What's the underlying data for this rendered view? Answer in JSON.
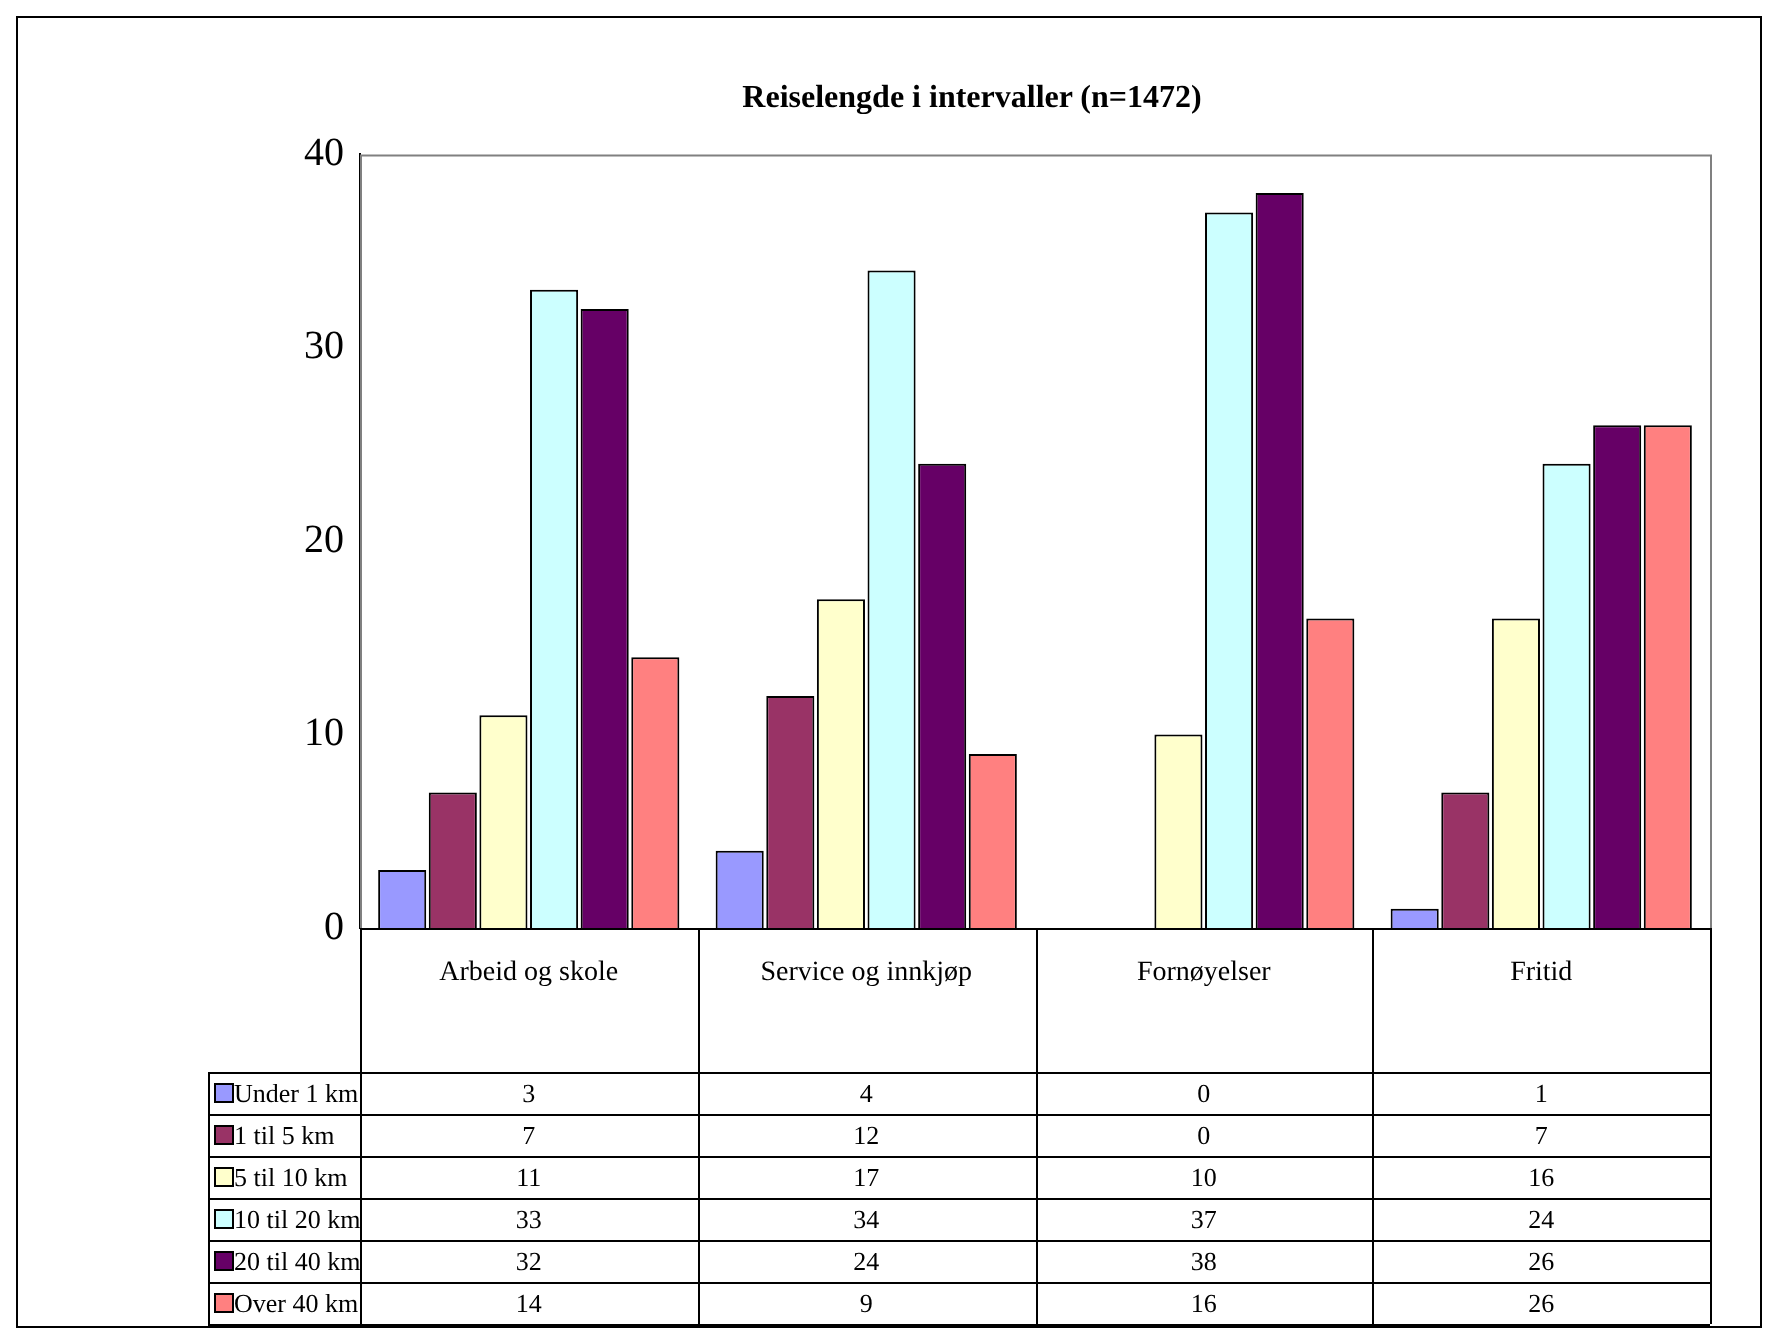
{
  "chart_data": {
    "type": "bar",
    "title": "Reiselengde i intervaller (n=1472)",
    "categories": [
      "Arbeid og skole",
      "Service og innkjøp",
      "Fornøyelser",
      "Fritid"
    ],
    "series": [
      {
        "name": "Under 1 km",
        "color": "#9999ff",
        "values": [
          3,
          4,
          0,
          1
        ]
      },
      {
        "name": "1 til 5 km",
        "color": "#993366",
        "values": [
          7,
          12,
          0,
          7
        ]
      },
      {
        "name": "5 til 10 km",
        "color": "#ffffcc",
        "values": [
          11,
          17,
          10,
          16
        ]
      },
      {
        "name": "10 til 20 km",
        "color": "#ccffff",
        "values": [
          33,
          34,
          37,
          24
        ]
      },
      {
        "name": "20 til 40 km",
        "color": "#660066",
        "values": [
          32,
          24,
          38,
          26
        ]
      },
      {
        "name": "Over 40 km",
        "color": "#ff8080",
        "values": [
          14,
          9,
          16,
          26
        ]
      }
    ],
    "ylim": [
      0,
      40
    ],
    "yticks": [
      0,
      10,
      20,
      30,
      40
    ],
    "grid": false,
    "legend": "bottom left",
    "data_labels": true
  }
}
